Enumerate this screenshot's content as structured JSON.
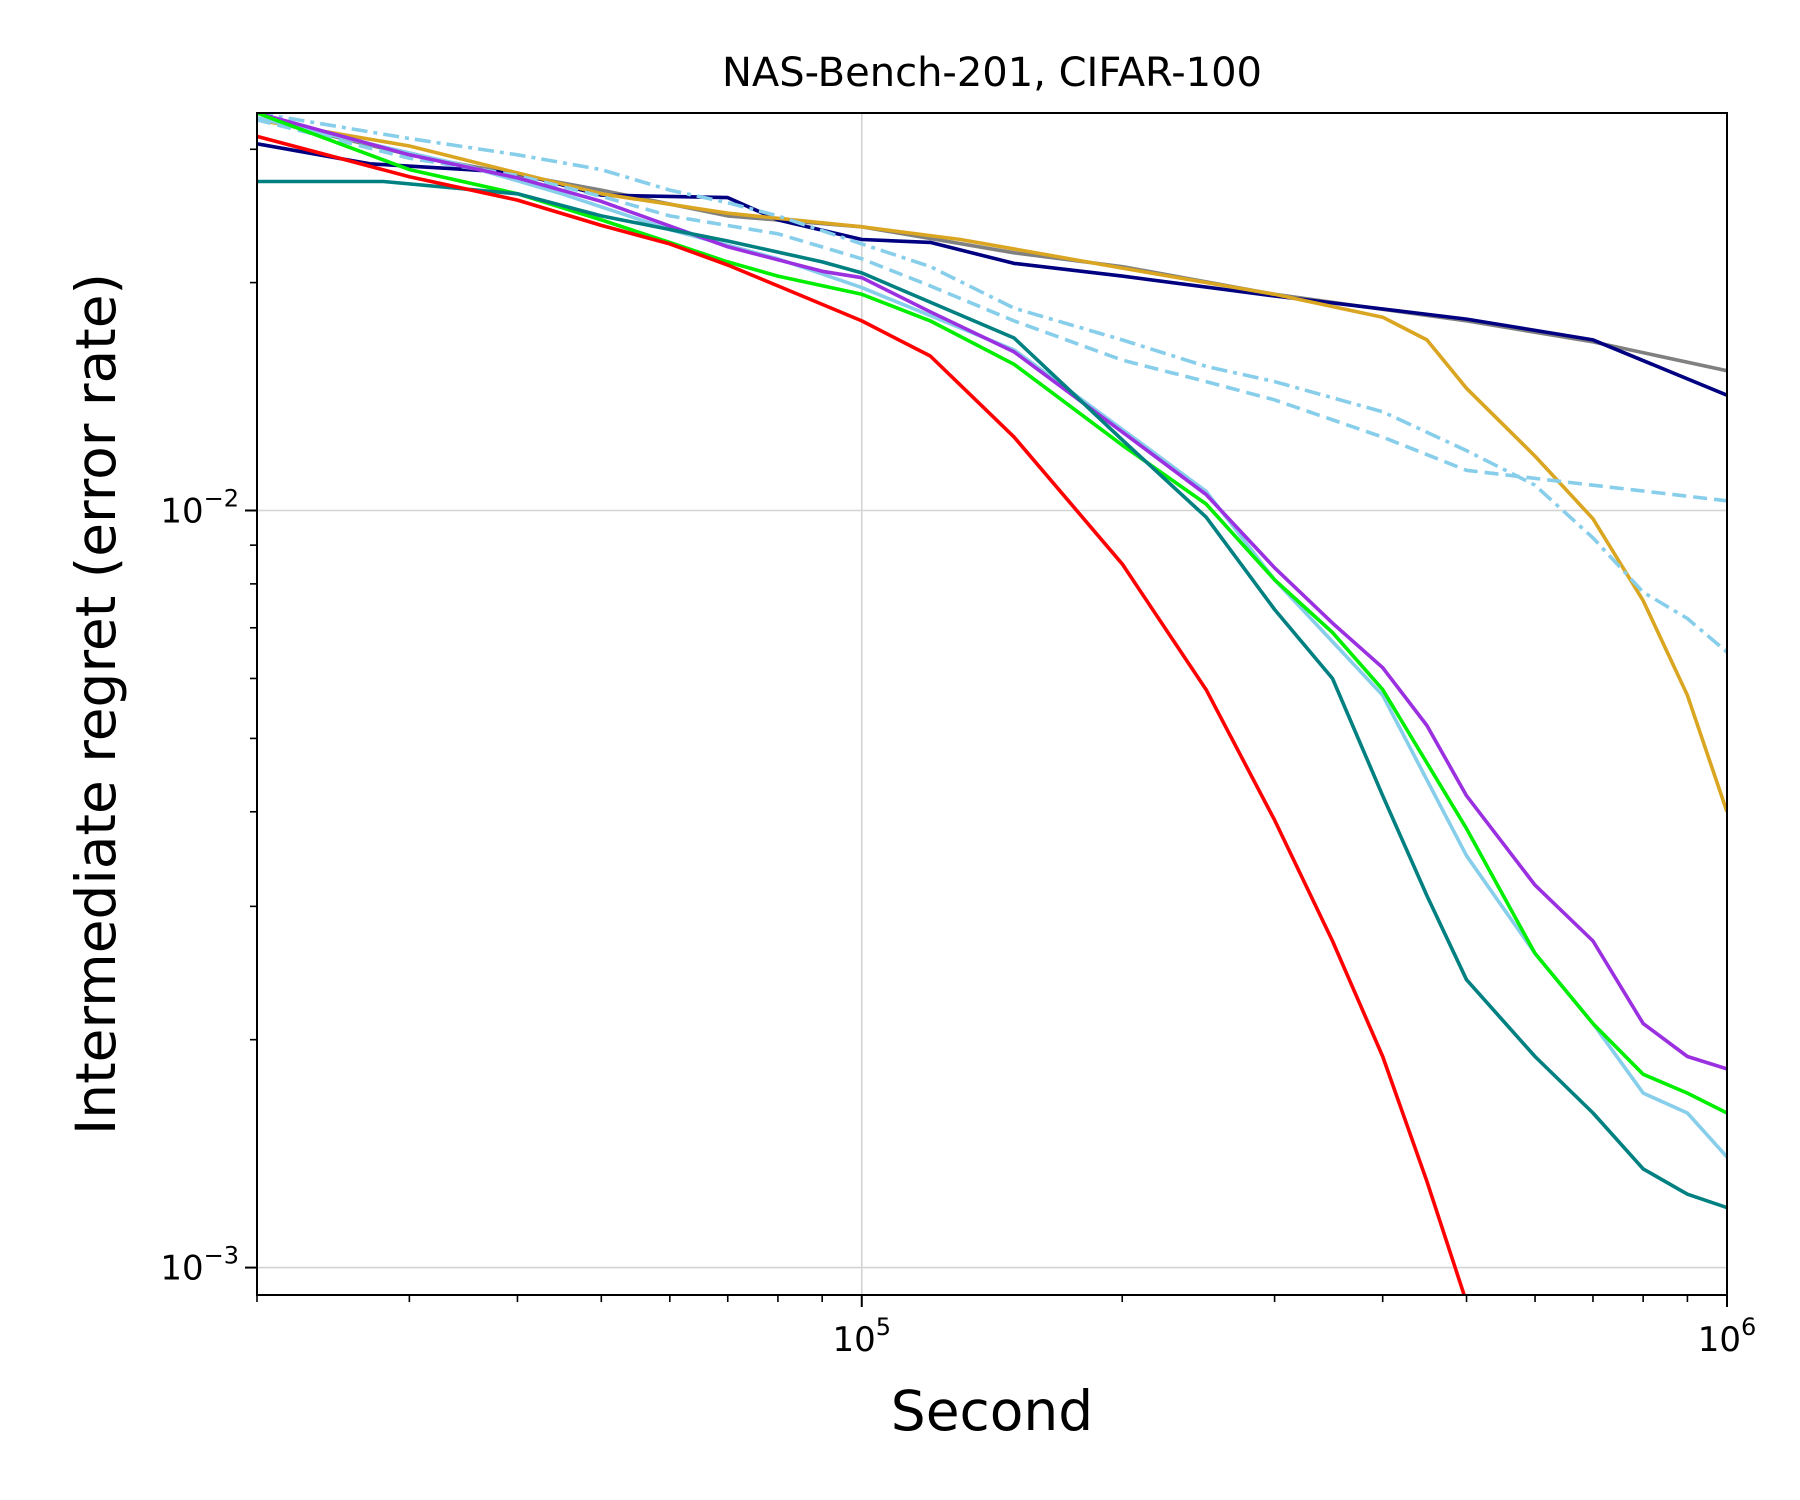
{
  "chart_data": {
    "type": "line",
    "title": "NAS-Bench-201, CIFAR-100",
    "xlabel": "Second",
    "ylabel": "Intermediate regret (error rate)",
    "xscale": "log",
    "yscale": "log",
    "xlim": [
      20000,
      1000000
    ],
    "ylim": [
      0.00092,
      0.0335
    ],
    "grid": true,
    "x_ticks": [
      {
        "value": 100000,
        "base": "10",
        "exp": "5"
      },
      {
        "value": 1000000,
        "base": "10",
        "exp": "6"
      }
    ],
    "y_ticks": [
      {
        "value": 0.01,
        "base": "10",
        "exp": "−2"
      },
      {
        "value": 0.001,
        "base": "10",
        "exp": "−3"
      }
    ],
    "series": [
      {
        "color": "#808080",
        "dash": "solid",
        "points": [
          [
            20000,
            0.033
          ],
          [
            30000,
            0.0295
          ],
          [
            50000,
            0.0265
          ],
          [
            70000,
            0.0245
          ],
          [
            100000,
            0.0237
          ],
          [
            150000,
            0.0219
          ],
          [
            200000,
            0.021
          ],
          [
            300000,
            0.0193
          ],
          [
            500000,
            0.0178
          ],
          [
            700000,
            0.0167
          ],
          [
            1000000,
            0.0153
          ]
        ]
      },
      {
        "color": "#000080",
        "dash": "solid",
        "points": [
          [
            20000,
            0.0305
          ],
          [
            27000,
            0.0287
          ],
          [
            35000,
            0.0282
          ],
          [
            40000,
            0.0279
          ],
          [
            50000,
            0.0261
          ],
          [
            70000,
            0.0259
          ],
          [
            80000,
            0.0242
          ],
          [
            100000,
            0.0228
          ],
          [
            120000,
            0.0226
          ],
          [
            150000,
            0.0212
          ],
          [
            200000,
            0.0204
          ],
          [
            300000,
            0.0192
          ],
          [
            500000,
            0.0179
          ],
          [
            700000,
            0.0168
          ],
          [
            1000000,
            0.0142
          ]
        ]
      },
      {
        "color": "#DAA520",
        "dash": "solid",
        "points": [
          [
            20000,
            0.0328
          ],
          [
            30000,
            0.0303
          ],
          [
            50000,
            0.0262
          ],
          [
            70000,
            0.0247
          ],
          [
            100000,
            0.0237
          ],
          [
            130000,
            0.0228
          ],
          [
            200000,
            0.0209
          ],
          [
            300000,
            0.0193
          ],
          [
            400000,
            0.018
          ],
          [
            450000,
            0.0168
          ],
          [
            500000,
            0.0145
          ],
          [
            600000,
            0.0118
          ],
          [
            700000,
            0.00975
          ],
          [
            800000,
            0.0076
          ],
          [
            900000,
            0.0057
          ],
          [
            1000000,
            0.004
          ]
        ]
      },
      {
        "color": "#87CEEB",
        "dash": "dashdot",
        "points": [
          [
            20000,
            0.0335
          ],
          [
            30000,
            0.031
          ],
          [
            40000,
            0.0295
          ],
          [
            50000,
            0.0282
          ],
          [
            60000,
            0.0265
          ],
          [
            70000,
            0.0255
          ],
          [
            80000,
            0.0245
          ],
          [
            100000,
            0.0225
          ],
          [
            120000,
            0.021
          ],
          [
            150000,
            0.0185
          ],
          [
            200000,
            0.0168
          ],
          [
            250000,
            0.0155
          ],
          [
            300000,
            0.0148
          ],
          [
            400000,
            0.0135
          ],
          [
            500000,
            0.012
          ],
          [
            600000,
            0.0108
          ],
          [
            700000,
            0.0092
          ],
          [
            800000,
            0.0078
          ],
          [
            900000,
            0.0072
          ],
          [
            1000000,
            0.0065
          ]
        ]
      },
      {
        "color": "#87CEEB",
        "dash": "dashed",
        "points": [
          [
            20000,
            0.0328
          ],
          [
            30000,
            0.0292
          ],
          [
            40000,
            0.0277
          ],
          [
            50000,
            0.026
          ],
          [
            60000,
            0.0245
          ],
          [
            80000,
            0.0232
          ],
          [
            100000,
            0.0215
          ],
          [
            120000,
            0.0198
          ],
          [
            150000,
            0.0178
          ],
          [
            200000,
            0.0158
          ],
          [
            250000,
            0.0148
          ],
          [
            300000,
            0.014
          ],
          [
            400000,
            0.0125
          ],
          [
            500000,
            0.0113
          ],
          [
            700000,
            0.0108
          ],
          [
            1000000,
            0.0103
          ]
        ]
      },
      {
        "color": "#87CEEB",
        "dash": "solid",
        "points": [
          [
            20000,
            0.033
          ],
          [
            35000,
            0.0285
          ],
          [
            45000,
            0.0262
          ],
          [
            60000,
            0.0235
          ],
          [
            80000,
            0.0215
          ],
          [
            100000,
            0.0197
          ],
          [
            150000,
            0.0163
          ],
          [
            200000,
            0.0128
          ],
          [
            250000,
            0.0106
          ],
          [
            300000,
            0.0081
          ],
          [
            400000,
            0.0057
          ],
          [
            500000,
            0.0035
          ],
          [
            600000,
            0.0026
          ],
          [
            700000,
            0.0021
          ],
          [
            800000,
            0.0017
          ],
          [
            900000,
            0.0016
          ],
          [
            1000000,
            0.0014
          ]
        ]
      },
      {
        "color": "#9B30E0",
        "dash": "solid",
        "points": [
          [
            20000,
            0.0335
          ],
          [
            30000,
            0.0295
          ],
          [
            40000,
            0.0275
          ],
          [
            50000,
            0.0256
          ],
          [
            70000,
            0.0223
          ],
          [
            90000,
            0.0207
          ],
          [
            100000,
            0.0203
          ],
          [
            120000,
            0.0183
          ],
          [
            150000,
            0.0162
          ],
          [
            200000,
            0.0127
          ],
          [
            250000,
            0.0105
          ],
          [
            300000,
            0.0084
          ],
          [
            350000,
            0.0071
          ],
          [
            400000,
            0.0062
          ],
          [
            450000,
            0.0052
          ],
          [
            500000,
            0.0042
          ],
          [
            600000,
            0.0032
          ],
          [
            700000,
            0.0027
          ],
          [
            800000,
            0.0021
          ],
          [
            900000,
            0.0019
          ],
          [
            1000000,
            0.00183
          ]
        ]
      },
      {
        "color": "#00EE00",
        "dash": "solid",
        "points": [
          [
            20000,
            0.0335
          ],
          [
            30000,
            0.0282
          ],
          [
            40000,
            0.0262
          ],
          [
            50000,
            0.0242
          ],
          [
            60000,
            0.0226
          ],
          [
            70000,
            0.0213
          ],
          [
            80000,
            0.0204
          ],
          [
            100000,
            0.0193
          ],
          [
            120000,
            0.0178
          ],
          [
            150000,
            0.0156
          ],
          [
            200000,
            0.0122
          ],
          [
            250000,
            0.0102
          ],
          [
            300000,
            0.0081
          ],
          [
            350000,
            0.0069
          ],
          [
            400000,
            0.0058
          ],
          [
            500000,
            0.0038
          ],
          [
            600000,
            0.0026
          ],
          [
            700000,
            0.0021
          ],
          [
            800000,
            0.0018
          ],
          [
            900000,
            0.0017
          ],
          [
            1000000,
            0.0016
          ]
        ]
      },
      {
        "color": "#008080",
        "dash": "solid",
        "points": [
          [
            20000,
            0.0272
          ],
          [
            28000,
            0.0272
          ],
          [
            40000,
            0.0262
          ],
          [
            50000,
            0.0245
          ],
          [
            70000,
            0.0227
          ],
          [
            90000,
            0.0213
          ],
          [
            100000,
            0.0206
          ],
          [
            150000,
            0.0169
          ],
          [
            200000,
            0.0124
          ],
          [
            250000,
            0.0098
          ],
          [
            300000,
            0.0074
          ],
          [
            350000,
            0.006
          ],
          [
            400000,
            0.0042
          ],
          [
            450000,
            0.0031
          ],
          [
            500000,
            0.0024
          ],
          [
            600000,
            0.0019
          ],
          [
            700000,
            0.0016
          ],
          [
            800000,
            0.00135
          ],
          [
            900000,
            0.00125
          ],
          [
            1000000,
            0.0012
          ]
        ]
      },
      {
        "color": "#FF0000",
        "dash": "solid",
        "points": [
          [
            20000,
            0.0312
          ],
          [
            30000,
            0.0276
          ],
          [
            40000,
            0.0257
          ],
          [
            50000,
            0.0238
          ],
          [
            60000,
            0.0225
          ],
          [
            70000,
            0.0211
          ],
          [
            80000,
            0.0198
          ],
          [
            100000,
            0.0178
          ],
          [
            120000,
            0.016
          ],
          [
            150000,
            0.0125
          ],
          [
            200000,
            0.0085
          ],
          [
            250000,
            0.0058
          ],
          [
            300000,
            0.0039
          ],
          [
            350000,
            0.0027
          ],
          [
            400000,
            0.0019
          ],
          [
            450000,
            0.0013
          ],
          [
            500000,
            0.0009
          ]
        ]
      }
    ]
  }
}
